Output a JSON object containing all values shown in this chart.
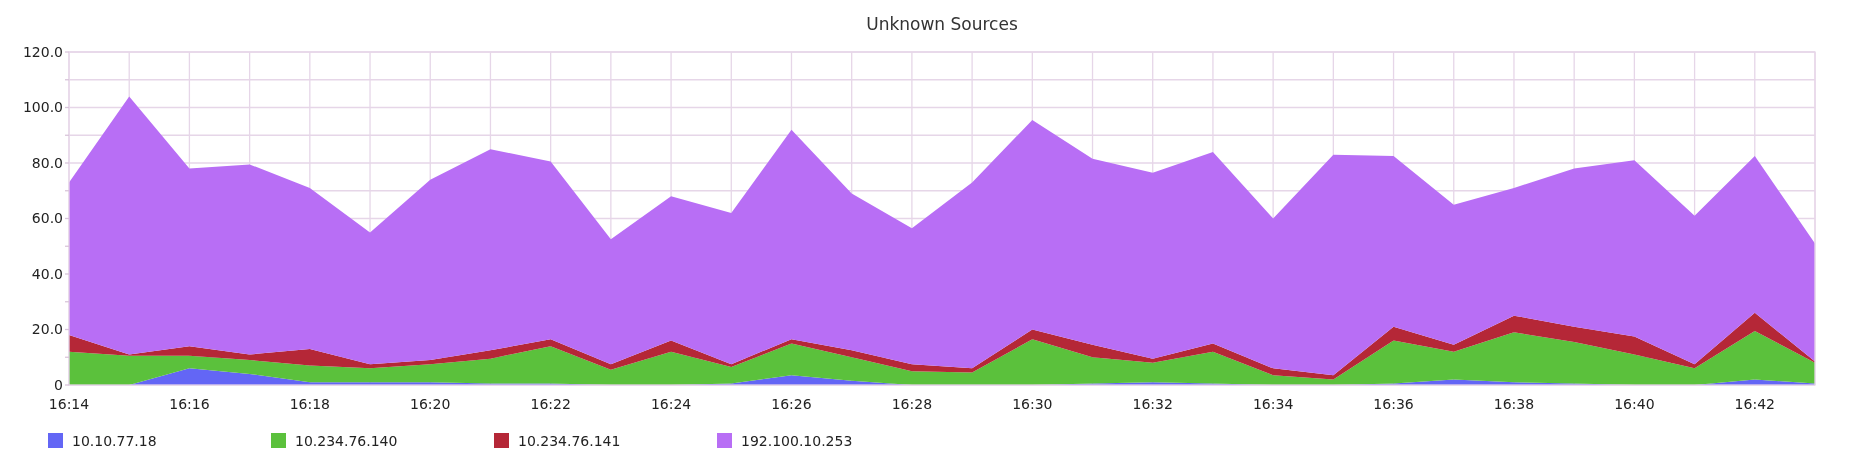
{
  "chart_data": {
    "type": "area",
    "stacked": true,
    "title": "Unknown Sources",
    "categories": [
      "16:14",
      null,
      "16:16",
      null,
      "16:18",
      null,
      "16:20",
      null,
      "16:22",
      null,
      "16:24",
      null,
      "16:26",
      null,
      "16:28",
      null,
      "16:30",
      null,
      "16:32",
      null,
      "16:34",
      null,
      "16:36",
      null,
      "16:38",
      null,
      "16:40",
      null,
      "16:42",
      null
    ],
    "series": [
      {
        "name": "10.10.77.18",
        "color": "#6366f5",
        "values": [
          0,
          0,
          6,
          4,
          1,
          1,
          1,
          0.5,
          0.5,
          0,
          0,
          0.5,
          3.5,
          1.5,
          0,
          0,
          0,
          0.5,
          1,
          0.5,
          0,
          0,
          0.5,
          2,
          1,
          0.5,
          0,
          0,
          2,
          0.5
        ]
      },
      {
        "name": "10.234.76.140",
        "color": "#5bc13c",
        "values": [
          12,
          10.5,
          4.5,
          5,
          6,
          5,
          6.5,
          9,
          13.5,
          5.5,
          12,
          6,
          11.5,
          8.5,
          5,
          4.5,
          16.5,
          9.5,
          7,
          11.5,
          3.5,
          2,
          15.5,
          10,
          18,
          15,
          11,
          6,
          17.5,
          7.5
        ]
      },
      {
        "name": "10.234.76.141",
        "color": "#b52737",
        "values": [
          6,
          0.5,
          3.5,
          2,
          6,
          1.5,
          1.5,
          3,
          2.5,
          2,
          4,
          1,
          1.5,
          2.5,
          2.5,
          1.5,
          3.5,
          4.5,
          1.5,
          3,
          2.5,
          1.5,
          5,
          2.5,
          6,
          5.5,
          6.5,
          1.5,
          6.5,
          0.5
        ]
      },
      {
        "name": "192.100.10.253",
        "color": "#b86ef5",
        "values": [
          55,
          93,
          64,
          68.5,
          58,
          47.5,
          65,
          72.5,
          64,
          45,
          52,
          54.5,
          75.5,
          56.5,
          49,
          67,
          75.5,
          67,
          67,
          69,
          54,
          79.5,
          61.5,
          50.5,
          46,
          57,
          63.5,
          53.5,
          56.5,
          42.5
        ]
      }
    ],
    "ylim": [
      0,
      120
    ],
    "yticks": [
      0,
      {
        "value": 10,
        "label": null
      },
      {
        "value": 20,
        "label": "20.0"
      },
      {
        "value": 30,
        "label": null
      },
      {
        "value": 40,
        "label": "40.0"
      },
      {
        "value": 50,
        "label": null
      },
      {
        "value": 60,
        "label": "60.0"
      },
      {
        "value": 70,
        "label": null
      },
      {
        "value": 80,
        "label": "80.0"
      },
      {
        "value": 90,
        "label": null
      },
      {
        "value": 100,
        "label": "100.0"
      },
      {
        "value": 110,
        "label": null
      },
      {
        "value": 120,
        "label": "120.0"
      }
    ],
    "grid": true,
    "legend": "bottom left"
  }
}
